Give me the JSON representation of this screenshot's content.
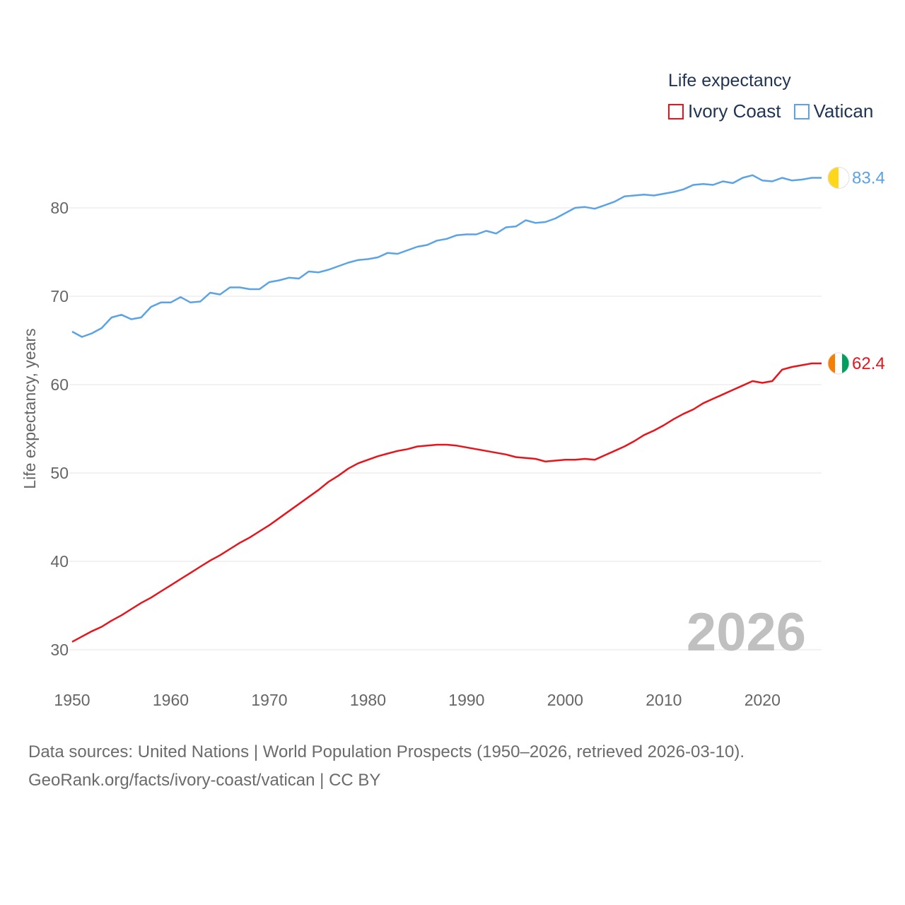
{
  "chart_data": {
    "type": "line",
    "xlabel": "",
    "ylabel": "Life expectancy, years",
    "xlim": [
      1950,
      2026
    ],
    "ylim": [
      30,
      85
    ],
    "x_ticks": [
      1950,
      1960,
      1970,
      1980,
      1990,
      2000,
      2010,
      2020
    ],
    "y_ticks": [
      30,
      40,
      50,
      60,
      70,
      80
    ],
    "grid": true,
    "year_watermark": "2026",
    "legend": {
      "title": "Life expectancy",
      "placement": "top-right"
    },
    "x": [
      1950,
      1951,
      1952,
      1953,
      1954,
      1955,
      1956,
      1957,
      1958,
      1959,
      1960,
      1961,
      1962,
      1963,
      1964,
      1965,
      1966,
      1967,
      1968,
      1969,
      1970,
      1971,
      1972,
      1973,
      1974,
      1975,
      1976,
      1977,
      1978,
      1979,
      1980,
      1981,
      1982,
      1983,
      1984,
      1985,
      1986,
      1987,
      1988,
      1989,
      1990,
      1991,
      1992,
      1993,
      1994,
      1995,
      1996,
      1997,
      1998,
      1999,
      2000,
      2001,
      2002,
      2003,
      2004,
      2005,
      2006,
      2007,
      2008,
      2009,
      2010,
      2011,
      2012,
      2013,
      2014,
      2015,
      2016,
      2017,
      2018,
      2019,
      2020,
      2021,
      2022,
      2023,
      2024,
      2025,
      2026
    ],
    "series": [
      {
        "name": "Ivory Coast",
        "color": "#e8141b",
        "end_label": "62.4",
        "flag_colors": [
          "#f77f00",
          "#ffffff",
          "#009e60"
        ],
        "values": [
          30.9,
          31.5,
          32.1,
          32.6,
          33.3,
          33.9,
          34.6,
          35.3,
          35.9,
          36.6,
          37.3,
          38.0,
          38.7,
          39.4,
          40.1,
          40.7,
          41.4,
          42.1,
          42.7,
          43.4,
          44.1,
          44.9,
          45.7,
          46.5,
          47.3,
          48.1,
          49.0,
          49.7,
          50.5,
          51.1,
          51.5,
          51.9,
          52.2,
          52.5,
          52.7,
          53.0,
          53.1,
          53.2,
          53.2,
          53.1,
          52.9,
          52.7,
          52.5,
          52.3,
          52.1,
          51.8,
          51.7,
          51.6,
          51.3,
          51.4,
          51.5,
          51.5,
          51.6,
          51.5,
          52.0,
          52.5,
          53.0,
          53.6,
          54.3,
          54.8,
          55.4,
          56.1,
          56.7,
          57.2,
          57.9,
          58.4,
          58.9,
          59.4,
          59.9,
          60.4,
          60.2,
          60.4,
          61.7,
          62.0,
          62.2,
          62.4,
          62.4
        ]
      },
      {
        "name": "Vatican",
        "color": "#5aa3e6",
        "end_label": "83.4",
        "flag_colors": [
          "#ffd71a",
          "#ffffff"
        ],
        "values": [
          66.0,
          65.4,
          65.8,
          66.4,
          67.6,
          67.9,
          67.4,
          67.6,
          68.8,
          69.3,
          69.3,
          69.9,
          69.3,
          69.4,
          70.4,
          70.2,
          71.0,
          71.0,
          70.8,
          70.8,
          71.6,
          71.8,
          72.1,
          72.0,
          72.8,
          72.7,
          73.0,
          73.4,
          73.8,
          74.1,
          74.2,
          74.4,
          74.9,
          74.8,
          75.2,
          75.6,
          75.8,
          76.3,
          76.5,
          76.9,
          77.0,
          77.0,
          77.4,
          77.1,
          77.8,
          77.9,
          78.6,
          78.3,
          78.4,
          78.8,
          79.4,
          80.0,
          80.1,
          79.9,
          80.3,
          80.7,
          81.3,
          81.4,
          81.5,
          81.4,
          81.6,
          81.8,
          82.1,
          82.6,
          82.7,
          82.6,
          83.0,
          82.8,
          83.4,
          83.7,
          83.1,
          83.0,
          83.4,
          83.1,
          83.2,
          83.4,
          83.4
        ]
      }
    ]
  },
  "footer": {
    "line1": "Data sources: United Nations | World Population Prospects (1950–2026, retrieved 2026-03-10).",
    "line2": "GeoRank.org/facts/ivory-coast/vatican | CC BY"
  }
}
